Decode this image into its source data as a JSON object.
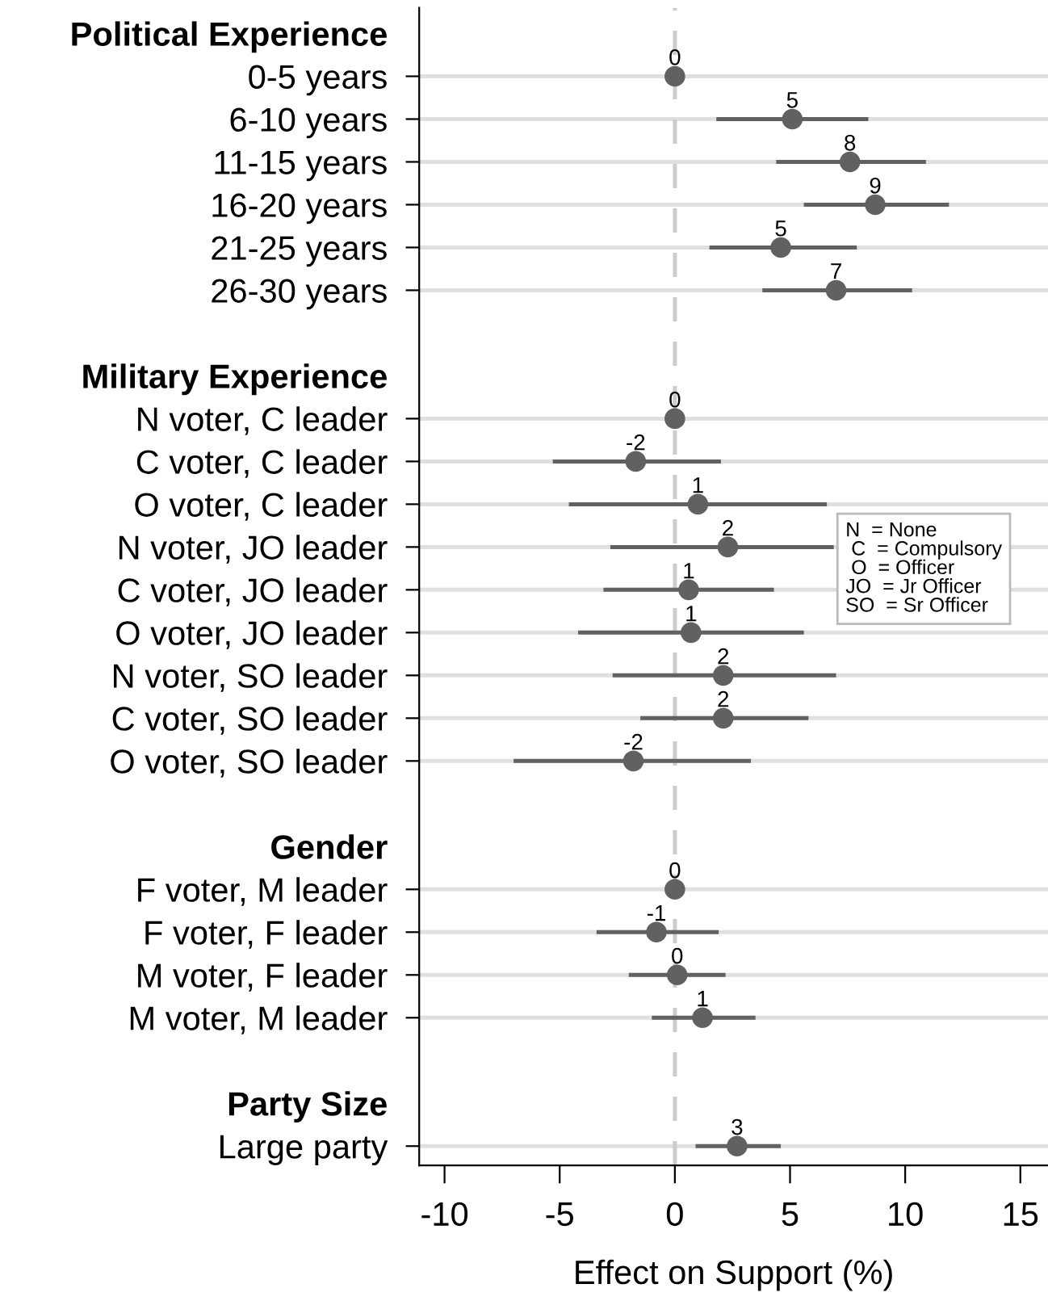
{
  "chart_data": {
    "type": "scatter",
    "orientation": "horizontal",
    "xlabel": "Effect on Support (%)",
    "categories": [
      "Political Experience",
      "0-5 years",
      "6-10 years",
      "11-15 years",
      "16-20 years",
      "21-25 years",
      "26-30 years",
      null,
      "Military Experience",
      "N voter, C leader",
      "C voter, C leader",
      "O voter, C leader",
      "N voter, JO leader",
      "C voter, JO leader",
      "O voter, JO leader",
      "N voter, SO leader",
      "C voter, SO leader",
      "O voter, SO leader",
      null,
      "Gender",
      "F voter, M leader",
      "F voter, F leader",
      "M voter, F leader",
      "M voter, M leader",
      null,
      "Party Size",
      "Large party"
    ],
    "series": [
      {
        "color": "#616161",
        "values": [
          null,
          0,
          5.1,
          7.6,
          8.7,
          4.6,
          7.0,
          null,
          null,
          0,
          -1.7,
          1.0,
          2.3,
          0.6,
          0.7,
          2.1,
          2.1,
          -1.8,
          null,
          null,
          0,
          -0.8,
          0.1,
          1.2,
          null,
          null,
          2.7
        ],
        "errors": [
          null,
          null,
          [
            1.8,
            8.4
          ],
          [
            4.4,
            10.9
          ],
          [
            5.6,
            11.9
          ],
          [
            1.5,
            7.9
          ],
          [
            3.8,
            10.3
          ],
          null,
          null,
          null,
          [
            -5.3,
            2.0
          ],
          [
            -4.6,
            6.6
          ],
          [
            -2.8,
            6.9
          ],
          [
            -3.1,
            4.3
          ],
          [
            -4.2,
            5.6
          ],
          [
            -2.7,
            7.0
          ],
          [
            -1.5,
            5.8
          ],
          [
            -7.0,
            3.3
          ],
          null,
          null,
          null,
          [
            -3.4,
            1.9
          ],
          [
            -2.0,
            2.2
          ],
          [
            -1.0,
            3.5
          ],
          null,
          null,
          [
            0.9,
            4.6
          ]
        ],
        "value_labels": [
          null,
          "0",
          "5",
          "8",
          "9",
          "5",
          "7",
          null,
          null,
          "0",
          "-2",
          "1",
          "2",
          "1",
          "1",
          "2",
          "2",
          "-2",
          null,
          null,
          "0",
          "-1",
          "0",
          "1",
          null,
          null,
          "3"
        ]
      }
    ],
    "xlim": [
      -11.1,
      16.2
    ],
    "xticks": [
      -10,
      -5,
      0,
      5,
      10,
      15
    ],
    "grid": "y",
    "marker": "circle",
    "ref_lines": [
      {
        "axis": "x",
        "value": 0,
        "color": "#cccccc",
        "line_style": "dashed"
      }
    ],
    "annotations": [
      "N  = None\n C  = Compulsory\n O  = Officer\nJO  = Jr Officer\nSO  = Sr Officer"
    ]
  }
}
